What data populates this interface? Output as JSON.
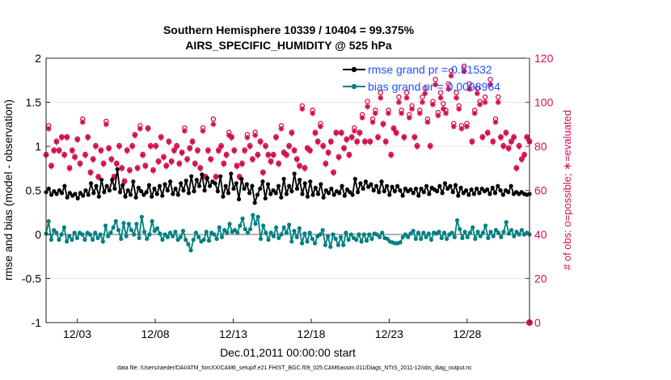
{
  "chart_data": {
    "type": "line",
    "title": "Southern Hemisphere 10339 / 10404 = 99.375%",
    "subtitle": "AIRS_SPECIFIC_HUMIDITY @ 525 hPa",
    "xlabel": "Dec.01,2011 00:00:00 start",
    "ylabel": "rmse and bias (model - observation)",
    "y2label": "# of obs: o=possible; ∗=evaluated",
    "footnote": "data file: /Users/raeder/DAI/ATM_forcXX/CAM6_setup/f.e21.FHIST_BGC.f09_025.CAM6assim.011/Diags_NTrS_2011-12/obs_diag_output.nc",
    "xticks": [
      "12/03",
      "12/08",
      "12/13",
      "12/18",
      "12/23",
      "12/28"
    ],
    "xtick_days": [
      3,
      8,
      13,
      18,
      23,
      28
    ],
    "xlim": [
      1.0,
      32.0
    ],
    "ylim": [
      -1,
      2
    ],
    "yticks": [
      "-1",
      "-0.5",
      "0",
      "0.5",
      "1",
      "1.5",
      "2"
    ],
    "y2lim": [
      0,
      120
    ],
    "y2ticks": [
      "0",
      "20",
      "40",
      "60",
      "80",
      "100",
      "120"
    ],
    "legend_position": "top-right",
    "colors": {
      "rmse": "#000000",
      "bias": "#008080",
      "obs": "#d0104c",
      "legend_text": "#1f4fff",
      "zero_line": "#b0b0b0"
    },
    "series": [
      {
        "name": "rmse grand pr = 0.51532",
        "axis": "left",
        "values": [
          0.48,
          0.52,
          0.45,
          0.49,
          0.46,
          0.5,
          0.47,
          0.55,
          0.42,
          0.47,
          0.44,
          0.46,
          0.41,
          0.47,
          0.44,
          0.5,
          0.45,
          0.58,
          0.47,
          0.55,
          0.43,
          0.62,
          0.48,
          0.55,
          0.5,
          0.62,
          0.52,
          0.74,
          0.48,
          0.56,
          0.43,
          0.5,
          0.45,
          0.6,
          0.42,
          0.53,
          0.49,
          0.45,
          0.48,
          0.56,
          0.43,
          0.52,
          0.46,
          0.55,
          0.44,
          0.57,
          0.5,
          0.6,
          0.46,
          0.52,
          0.45,
          0.58,
          0.5,
          0.61,
          0.47,
          0.66,
          0.49,
          0.62,
          0.55,
          0.68,
          0.5,
          0.64,
          0.55,
          0.6,
          0.58,
          0.49,
          0.66,
          0.43,
          0.55,
          0.47,
          0.69,
          0.52,
          0.58,
          0.4,
          0.63,
          0.52,
          0.57,
          0.47,
          0.55,
          0.36,
          0.45,
          0.52,
          0.6,
          0.41,
          0.57,
          0.46,
          0.5,
          0.47,
          0.55,
          0.42,
          0.63,
          0.46,
          0.55,
          0.49,
          0.69,
          0.52,
          0.62,
          0.46,
          0.58,
          0.43,
          0.6,
          0.45,
          0.53,
          0.46,
          0.57,
          0.42,
          0.5,
          0.47,
          0.52,
          0.45,
          0.49,
          0.47,
          0.55,
          0.44,
          0.51,
          0.48,
          0.45,
          0.63,
          0.48,
          0.58,
          0.52,
          0.6,
          0.54,
          0.57,
          0.5,
          0.55,
          0.48,
          0.6,
          0.49,
          0.55,
          0.45,
          0.54,
          0.49,
          0.55,
          0.5,
          0.44,
          0.52,
          0.49,
          0.51,
          0.47,
          0.52,
          0.44,
          0.52,
          0.48,
          0.55,
          0.46,
          0.53,
          0.51,
          0.49,
          0.55,
          0.47,
          0.58,
          0.52,
          0.55,
          0.48,
          0.56,
          0.44,
          0.53,
          0.47,
          0.5,
          0.45,
          0.51,
          0.46,
          0.52,
          0.47,
          0.52,
          0.49,
          0.51,
          0.46,
          0.53,
          0.47,
          0.55,
          0.5,
          0.45,
          0.5,
          0.48,
          0.55,
          0.46,
          0.48,
          0.46,
          0.48,
          0.46,
          0.45,
          0.46
        ]
      },
      {
        "name": "bias grand pr = 0.0098964",
        "axis": "left",
        "values": [
          0.01,
          0.15,
          -0.06,
          0.05,
          0.02,
          -0.06,
          0.0,
          0.08,
          -0.08,
          -0.02,
          -0.06,
          0.02,
          -0.04,
          0.02,
          0.0,
          -0.06,
          0.02,
          0.0,
          -0.06,
          0.02,
          -0.04,
          0.0,
          -0.08,
          0.1,
          -0.02,
          0.02,
          0.08,
          0.15,
          0.05,
          -0.05,
          0.13,
          -0.02,
          0.12,
          0.05,
          0.0,
          0.12,
          -0.04,
          0.2,
          0.03,
          -0.05,
          0.0,
          0.15,
          0.04,
          0.07,
          0.01,
          -0.06,
          0.0,
          -0.03,
          0.02,
          -0.02,
          0.03,
          -0.06,
          -0.03,
          0.04,
          -0.06,
          -0.11,
          -0.18,
          -0.06,
          0.02,
          -0.03,
          -0.08,
          -0.06,
          0.03,
          -0.07,
          0.02,
          0.0,
          -0.05,
          0.08,
          -0.03,
          0.05,
          0.02,
          0.12,
          0.03,
          0.05,
          0.02,
          0.1,
          0.18,
          0.06,
          0.02,
          0.06,
          0.22,
          0.12,
          0.2,
          -0.05,
          0.1,
          0.02,
          -0.06,
          0.02,
          -0.02,
          0.08,
          -0.04,
          0.0,
          0.08,
          0.02,
          0.11,
          -0.08,
          0.04,
          -0.03,
          0.07,
          -0.1,
          0.01,
          -0.08,
          0.02,
          -0.05,
          -0.1,
          -0.02,
          0.0,
          0.05,
          -0.12,
          -0.02,
          -0.14,
          0.0,
          -0.05,
          -0.12,
          -0.03,
          -0.12,
          0.02,
          -0.06,
          0.0,
          -0.04,
          -0.06,
          0.0,
          -0.08,
          0.0,
          -0.07,
          0.0,
          -0.05,
          0.01,
          0.0,
          -0.03,
          0.02,
          -0.04,
          -0.05,
          -0.08,
          -0.09,
          -0.1,
          -0.1,
          -0.09,
          -0.03,
          0.0,
          -0.03,
          0.01,
          0.04,
          -0.05,
          0.02,
          -0.05,
          0.02,
          -0.03,
          0.01,
          -0.06,
          0.02,
          0.01,
          0.03,
          -0.04,
          0.02,
          -0.05,
          0.0,
          0.02,
          -0.03,
          0.16,
          0.06,
          -0.04,
          0.03,
          -0.03,
          0.02,
          0.08,
          -0.05,
          0.03,
          -0.02,
          0.02,
          0.1,
          -0.04,
          0.03,
          -0.02,
          0.05,
          0.02,
          -0.03,
          0.03,
          0.14,
          0.01,
          0.05,
          -0.02,
          0.03,
          0.0,
          0.05,
          0.0,
          0.02,
          0.0
        ]
      },
      {
        "name": "possible",
        "axis": "right",
        "marker": "o",
        "values": [
          76,
          89,
          71,
          78,
          82,
          78,
          84,
          76,
          84,
          70,
          78,
          75,
          83,
          72,
          92,
          76,
          84,
          68,
          74,
          80,
          66,
          78,
          72,
          91,
          79,
          74,
          66,
          72,
          80,
          70,
          64,
          78,
          69,
          80,
          85,
          70,
          89,
          76,
          71,
          88,
          80,
          69,
          80,
          73,
          84,
          75,
          71,
          82,
          73,
          78,
          80,
          72,
          77,
          88,
          74,
          79,
          82,
          72,
          78,
          70,
          88,
          66,
          78,
          74,
          92,
          66,
          78,
          80,
          72,
          76,
          86,
          84,
          78,
          71,
          66,
          72,
          78,
          85,
          80,
          74,
          86,
          76,
          82,
          68,
          80,
          76,
          73,
          76,
          84,
          72,
          89,
          77,
          76,
          80,
          86,
          78,
          74,
          71,
          98,
          70,
          79,
          78,
          96,
          86,
          82,
          90,
          80,
          72,
          77,
          82,
          68,
          86,
          75,
          86,
          79,
          83,
          76,
          84,
          88,
          82,
          86,
          94,
          82,
          100,
          82,
          92,
          96,
          84,
          104,
          90,
          82,
          96,
          76,
          88,
          86,
          102,
          96,
          84,
          104,
          94,
          98,
          84,
          80,
          96,
          102,
          106,
          92,
          80,
          100,
          110,
          95,
          104,
          99,
          96,
          108,
          114,
          90,
          104,
          98,
          89,
          116,
          90,
          108,
          82,
          96,
          106,
          100,
          84,
          102,
          86,
          110,
          82,
          92,
          102,
          84,
          80,
          86,
          79,
          82,
          84,
          70,
          80,
          74,
          76,
          84,
          82
        ]
      },
      {
        "name": "evaluated",
        "axis": "right",
        "marker": "*",
        "values": [
          76,
          88,
          71,
          78,
          82,
          78,
          84,
          76,
          84,
          70,
          78,
          75,
          83,
          72,
          91,
          76,
          84,
          68,
          74,
          80,
          66,
          78,
          72,
          90,
          79,
          74,
          66,
          72,
          80,
          70,
          64,
          78,
          69,
          80,
          85,
          70,
          88,
          76,
          71,
          88,
          80,
          69,
          80,
          73,
          84,
          75,
          71,
          82,
          73,
          78,
          80,
          72,
          77,
          87,
          74,
          79,
          82,
          72,
          78,
          70,
          87,
          66,
          78,
          74,
          90,
          66,
          78,
          80,
          72,
          76,
          85,
          84,
          78,
          71,
          66,
          72,
          78,
          84,
          80,
          74,
          85,
          76,
          82,
          68,
          80,
          76,
          73,
          76,
          84,
          72,
          88,
          77,
          76,
          80,
          86,
          78,
          74,
          71,
          97,
          70,
          79,
          78,
          95,
          86,
          82,
          89,
          80,
          72,
          77,
          82,
          68,
          86,
          75,
          86,
          79,
          83,
          76,
          84,
          87,
          82,
          86,
          93,
          82,
          98,
          82,
          91,
          95,
          84,
          102,
          90,
          82,
          95,
          76,
          88,
          86,
          100,
          95,
          84,
          102,
          93,
          97,
          84,
          80,
          95,
          100,
          104,
          91,
          80,
          99,
          108,
          94,
          102,
          97,
          95,
          106,
          112,
          89,
          102,
          97,
          88,
          114,
          89,
          106,
          82,
          95,
          104,
          99,
          84,
          100,
          86,
          108,
          82,
          91,
          100,
          84,
          80,
          86,
          79,
          82,
          84,
          70,
          80,
          74,
          76,
          84,
          82
        ]
      }
    ],
    "extra_points": [
      {
        "name": "possible-endpoint",
        "x": 32.0,
        "y2": 0
      }
    ]
  }
}
